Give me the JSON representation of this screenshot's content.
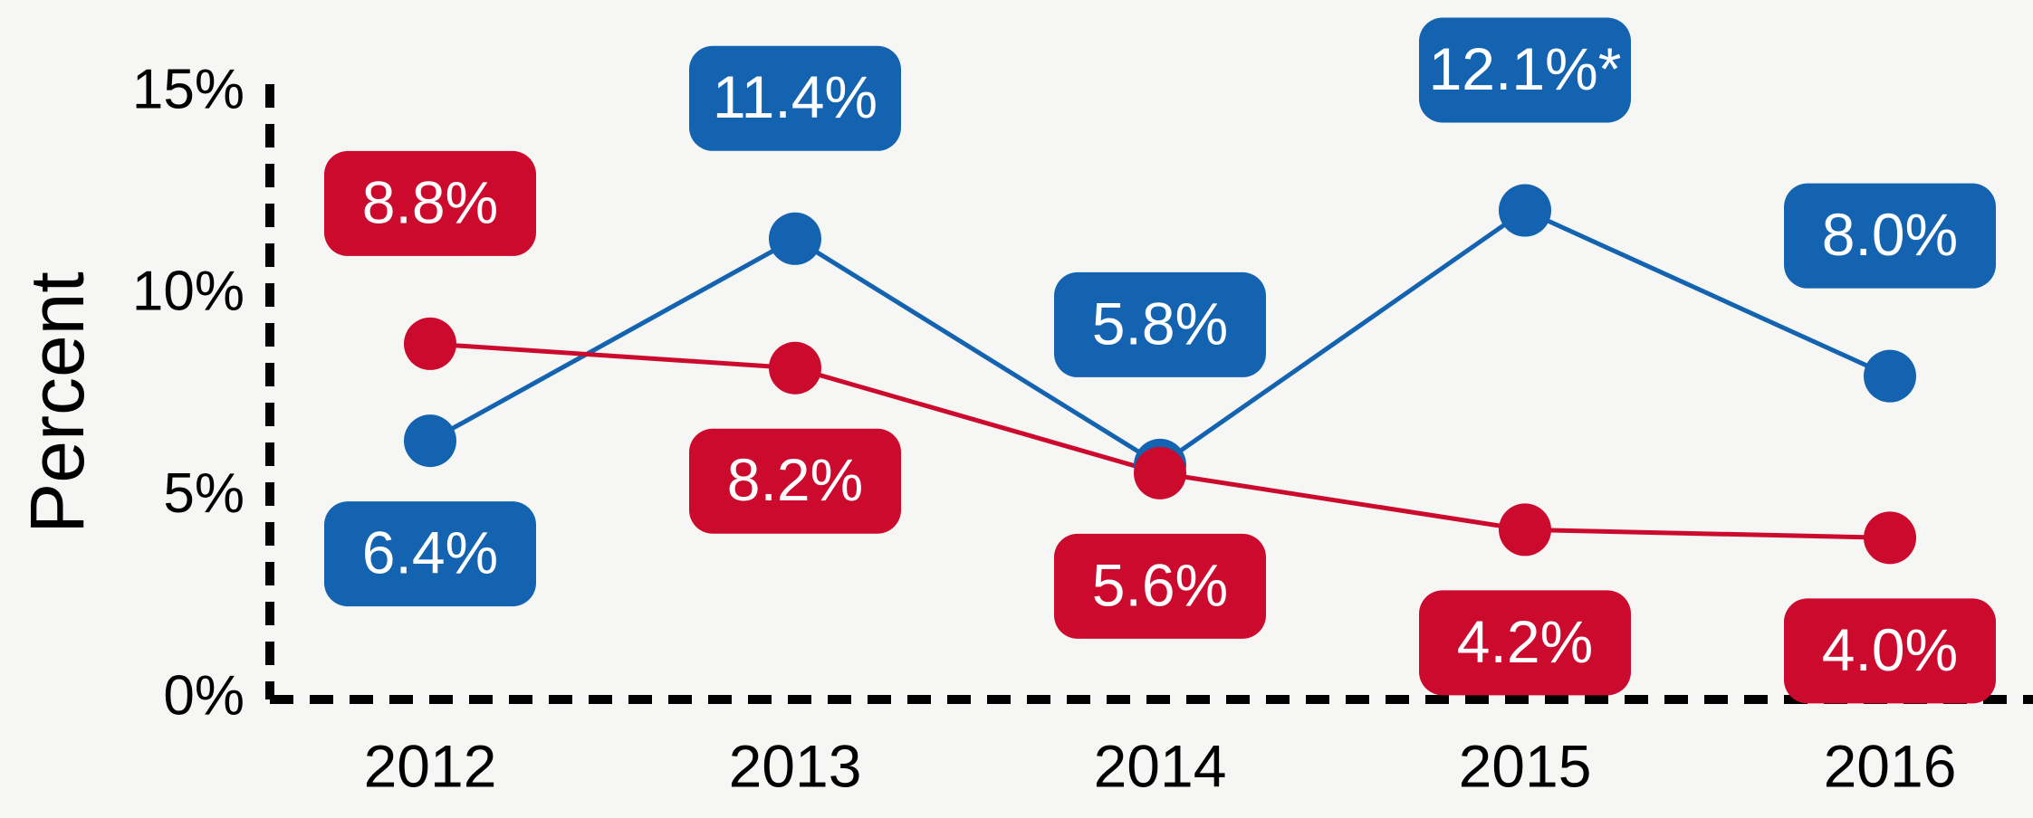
{
  "chart_data": {
    "type": "line",
    "y_label": "Percent",
    "categories": [
      "2012",
      "2013",
      "2014",
      "2015",
      "2016"
    ],
    "series": [
      {
        "color": "#1363b1",
        "values": [
          6.4,
          11.4,
          5.8,
          12.1,
          8.0
        ],
        "value_labels": [
          "6.4%",
          "11.4%",
          "5.8%",
          "12.1%*",
          "8.0%"
        ]
      },
      {
        "color": "#cc0a2d",
        "values": [
          8.8,
          8.2,
          5.6,
          4.2,
          4.0
        ],
        "value_labels": [
          "8.8%",
          "8.2%",
          "5.6%",
          "4.2%",
          "4.0%"
        ]
      }
    ],
    "ylim": [
      0,
      15
    ],
    "yticks": [
      {
        "value": 0,
        "label": "0%"
      },
      {
        "value": 5,
        "label": "5%"
      },
      {
        "value": 10,
        "label": "10%"
      },
      {
        "value": 15,
        "label": "15%"
      }
    ]
  }
}
